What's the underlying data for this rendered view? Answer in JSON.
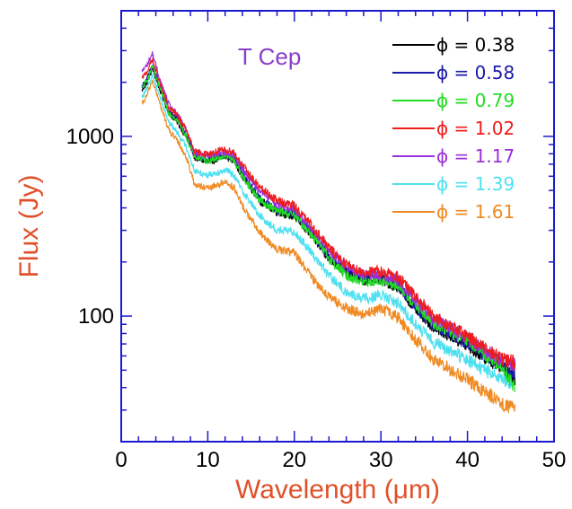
{
  "chart_data": {
    "type": "line",
    "title": "T Cep",
    "xlabel": "Wavelength (μm)",
    "ylabel": "Flux (Jy)",
    "xlim": [
      0,
      50
    ],
    "ylim": [
      20,
      5000
    ],
    "yscale": "log",
    "x_ticks": [
      0,
      10,
      20,
      30,
      40,
      50
    ],
    "x_tick_labels": [
      "0",
      "10",
      "20",
      "30",
      "40",
      "50"
    ],
    "y_ticks": [
      100,
      1000
    ],
    "y_tick_labels": [
      "100",
      "1000"
    ],
    "grid": false,
    "legend_position": "top-right",
    "x": [
      2.4,
      3.0,
      3.6,
      4.5,
      5.5,
      6.5,
      7.5,
      8.5,
      10,
      12,
      13,
      14,
      16,
      18,
      20,
      22,
      24,
      26,
      28,
      30,
      32,
      34,
      36,
      38,
      40,
      42,
      44,
      45.5
    ],
    "series": [
      {
        "name": "ϕ = 0.38",
        "color": "#000000",
        "values": [
          1800,
          2000,
          2400,
          1800,
          1350,
          1200,
          1000,
          760,
          720,
          770,
          740,
          600,
          440,
          380,
          360,
          280,
          210,
          175,
          158,
          160,
          145,
          110,
          88,
          78,
          68,
          59,
          52,
          45
        ]
      },
      {
        "name": "ϕ = 0.58",
        "color": "#1a1aa8",
        "values": [
          1900,
          2100,
          2500,
          1850,
          1380,
          1250,
          1020,
          780,
          740,
          790,
          760,
          610,
          450,
          390,
          370,
          290,
          215,
          180,
          162,
          163,
          148,
          112,
          90,
          80,
          70,
          61,
          54,
          47
        ]
      },
      {
        "name": "ϕ = 0.79",
        "color": "#22dd22",
        "values": [
          1850,
          2050,
          2450,
          1830,
          1360,
          1230,
          1000,
          770,
          730,
          780,
          745,
          600,
          440,
          385,
          365,
          285,
          210,
          168,
          155,
          158,
          146,
          115,
          92,
          82,
          72,
          62,
          52,
          40
        ]
      },
      {
        "name": "ϕ = 1.02",
        "color": "#ee1c1c",
        "values": [
          2100,
          2300,
          2700,
          1950,
          1450,
          1300,
          1080,
          820,
          800,
          840,
          820,
          690,
          520,
          440,
          410,
          320,
          240,
          195,
          175,
          178,
          165,
          128,
          100,
          88,
          78,
          66,
          58,
          55
        ]
      },
      {
        "name": "ϕ = 1.17",
        "color": "#9b30d9",
        "values": [
          2300,
          2500,
          2900,
          2050,
          1500,
          1320,
          1100,
          810,
          780,
          820,
          790,
          660,
          500,
          420,
          395,
          310,
          232,
          190,
          170,
          170,
          158,
          124,
          98,
          86,
          76,
          64,
          57,
          53
        ]
      },
      {
        "name": "ϕ = 1.39",
        "color": "#4fe0f0",
        "values": [
          1650,
          1850,
          2200,
          1650,
          1200,
          1050,
          880,
          640,
          610,
          650,
          610,
          500,
          360,
          300,
          295,
          225,
          168,
          135,
          125,
          130,
          118,
          90,
          72,
          64,
          57,
          50,
          45,
          42
        ]
      },
      {
        "name": "ϕ = 1.61",
        "color": "#f08a22",
        "values": [
          1500,
          1700,
          2050,
          1500,
          1080,
          940,
          770,
          540,
          510,
          560,
          520,
          410,
          290,
          235,
          225,
          165,
          128,
          110,
          102,
          110,
          98,
          74,
          58,
          50,
          44,
          38,
          33,
          30
        ]
      }
    ]
  }
}
